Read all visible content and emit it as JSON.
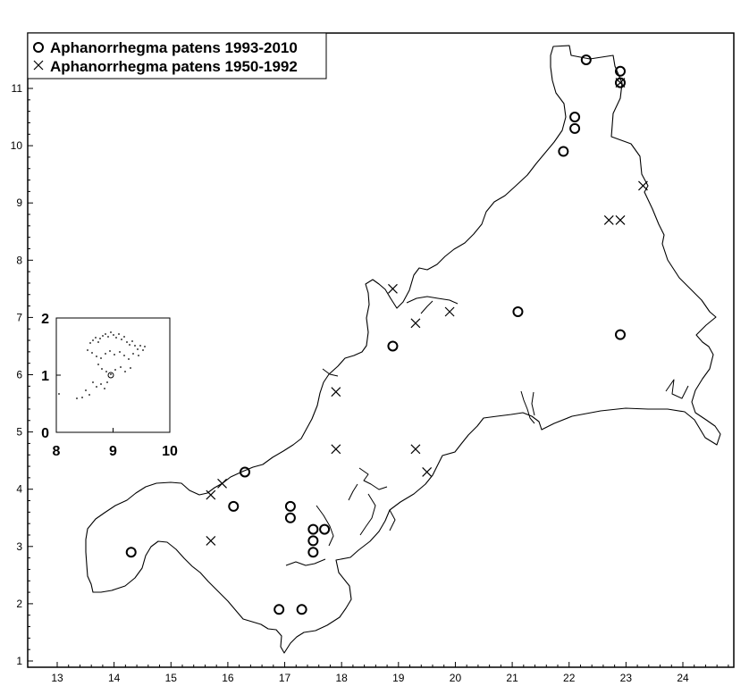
{
  "chart_data": {
    "type": "scatter",
    "title": "",
    "xlabel": "",
    "ylabel": "",
    "xlim": [
      12.7,
      24.9
    ],
    "ylim": [
      0.85,
      11.95
    ],
    "x_ticks": [
      13,
      14,
      15,
      16,
      17,
      18,
      19,
      20,
      21,
      22,
      23,
      24
    ],
    "y_ticks": [
      1,
      2,
      3,
      4,
      5,
      6,
      7,
      8,
      9,
      10,
      11
    ],
    "grid": false,
    "legend_position": "top-left",
    "series": [
      {
        "name": "Aphanorrhegma patens 1993-2010",
        "marker": "circle",
        "points": [
          [
            14.3,
            2.9
          ],
          [
            16.1,
            3.7
          ],
          [
            16.3,
            4.3
          ],
          [
            16.9,
            1.9
          ],
          [
            17.1,
            3.7
          ],
          [
            17.1,
            3.5
          ],
          [
            17.3,
            1.9
          ],
          [
            17.5,
            3.3
          ],
          [
            17.5,
            3.1
          ],
          [
            17.5,
            2.9
          ],
          [
            17.7,
            3.3
          ],
          [
            18.9,
            6.5
          ],
          [
            21.1,
            7.1
          ],
          [
            21.9,
            9.9
          ],
          [
            22.1,
            10.5
          ],
          [
            22.1,
            10.3
          ],
          [
            22.3,
            11.5
          ],
          [
            22.9,
            11.3
          ],
          [
            22.9,
            11.1
          ],
          [
            22.9,
            6.7
          ]
        ]
      },
      {
        "name": "Aphanorrhegma patens 1950-1992",
        "marker": "cross",
        "points": [
          [
            15.7,
            3.9
          ],
          [
            15.7,
            3.1
          ],
          [
            15.9,
            4.1
          ],
          [
            17.9,
            5.7
          ],
          [
            17.9,
            4.7
          ],
          [
            18.9,
            7.5
          ],
          [
            19.3,
            6.9
          ],
          [
            19.3,
            4.7
          ],
          [
            19.5,
            4.3
          ],
          [
            19.9,
            7.1
          ],
          [
            22.7,
            8.7
          ],
          [
            22.9,
            8.7
          ],
          [
            22.9,
            11.1
          ],
          [
            23.3,
            9.3
          ]
        ]
      }
    ],
    "inset": {
      "x_ticks": [
        8,
        9,
        10
      ],
      "y_ticks": [
        0,
        1,
        2
      ]
    }
  },
  "legend": {
    "circle_label": "Aphanorrhegma patens 1993-2010",
    "cross_label": "Aphanorrhegma patens 1950-1992"
  },
  "colors": {
    "ink": "#000000",
    "background": "#ffffff"
  }
}
